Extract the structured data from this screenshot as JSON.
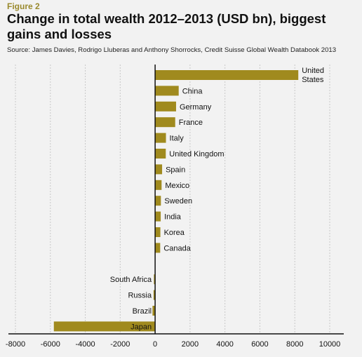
{
  "figure_label": "Figure 2",
  "title": "Change in total wealth 2012–2013 (USD bn), biggest gains and losses",
  "source": "Source: James Davies, Rodrigo Lluberas and Anthony Shorrocks, Credit Suisse Global Wealth Databook 2013",
  "colors": {
    "bar": "#a08a1e",
    "grid": "#c8c8c8",
    "axis": "#111111",
    "background": "#f2f2f2",
    "figure_label": "#9a8a2e"
  },
  "chart_data": {
    "type": "bar",
    "orientation": "horizontal",
    "title": "Change in total wealth 2012–2013 (USD bn), biggest gains and losses",
    "xlabel": "",
    "ylabel": "",
    "xlim": [
      -8000,
      10000
    ],
    "xticks": [
      -8000,
      -6000,
      -4000,
      -2000,
      0,
      2000,
      4000,
      6000,
      8000,
      10000
    ],
    "grid": "vertical dashed",
    "legend": "none",
    "categories": [
      "United States",
      "China",
      "Germany",
      "France",
      "Italy",
      "United Kingdom",
      "Spain",
      "Mexico",
      "Sweden",
      "India",
      "Korea",
      "Canada",
      "South Africa",
      "Russia",
      "Brazil",
      "Japan"
    ],
    "category_label_lines": [
      [
        "United",
        "States"
      ],
      [
        "China"
      ],
      [
        "Germany"
      ],
      [
        "France"
      ],
      [
        "Italy"
      ],
      [
        "United Kingdom"
      ],
      [
        "Spain"
      ],
      [
        "Mexico"
      ],
      [
        "Sweden"
      ],
      [
        "India"
      ],
      [
        "Korea"
      ],
      [
        "Canada"
      ],
      [
        "South Africa"
      ],
      [
        "Russia"
      ],
      [
        "Brazil"
      ],
      [
        "Japan"
      ]
    ],
    "values": [
      8200,
      1350,
      1200,
      1150,
      620,
      610,
      400,
      370,
      330,
      320,
      300,
      290,
      -70,
      -90,
      -150,
      -5800
    ]
  }
}
